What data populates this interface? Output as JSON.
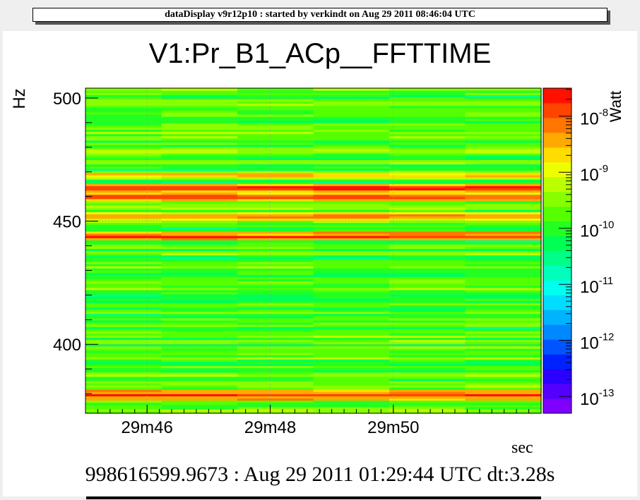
{
  "header": {
    "text": "dataDisplay v9r12p10 : started by verkindt on Aug 29 2011 08:46:04 UTC"
  },
  "footer": {
    "text": "998616599.9673 : Aug 29 2011 01:29:44 UTC dt:3.28s"
  },
  "chart_data": {
    "type": "heatmap",
    "title": "V1:Pr_B1_ACp__FFTTIME",
    "xlabel": "sec",
    "ylabel": "Hz",
    "zlabel": "Watt",
    "xlim_text": [
      "29m45",
      "29m52.4"
    ],
    "x_tick_labels": [
      "29m46",
      "29m48",
      "29m50"
    ],
    "x_tick_values_sec": [
      46,
      48,
      50
    ],
    "xlim_sec": [
      45,
      52.4
    ],
    "ylim": [
      372,
      504
    ],
    "y_tick_labels": [
      "400",
      "450",
      "500"
    ],
    "y_tick_values": [
      400,
      450,
      500
    ],
    "z_scale": "log",
    "zlim_exponent": [
      -13.3,
      -7.5
    ],
    "z_tick_labels": [
      {
        "base": "10",
        "exp": "-8"
      },
      {
        "base": "10",
        "exp": "-9"
      },
      {
        "base": "10",
        "exp": "-10"
      },
      {
        "base": "10",
        "exp": "-11"
      },
      {
        "base": "10",
        "exp": "-12"
      },
      {
        "base": "10",
        "exp": "-13"
      }
    ],
    "z_tick_exponents": [
      -8,
      -9,
      -10,
      -11,
      -12,
      -13
    ],
    "background_level_exponent": -9.8,
    "strong_lines_hz": [
      {
        "freq": 379.5,
        "level_exponent": -7.7
      },
      {
        "freq": 443.8,
        "level_exponent": -7.7
      },
      {
        "freq": 451.8,
        "level_exponent": -8.3
      },
      {
        "freq": 459.8,
        "level_exponent": -8.0
      },
      {
        "freq": 463.3,
        "level_exponent": -7.8
      },
      {
        "freq": 468.6,
        "level_exponent": -8.6
      }
    ],
    "grid": true,
    "colors": {
      "palette": [
        "#7f00ff",
        "#5500ff",
        "#2b00ff",
        "#0022ff",
        "#0055ff",
        "#0088ff",
        "#00b3ff",
        "#00ddff",
        "#00ffee",
        "#00ffbb",
        "#00ff88",
        "#00ff55",
        "#22ff22",
        "#55ff00",
        "#88ff00",
        "#bbff00",
        "#eeff00",
        "#ffdd00",
        "#ffaa00",
        "#ff7700",
        "#ff4400",
        "#ff1100"
      ]
    }
  }
}
